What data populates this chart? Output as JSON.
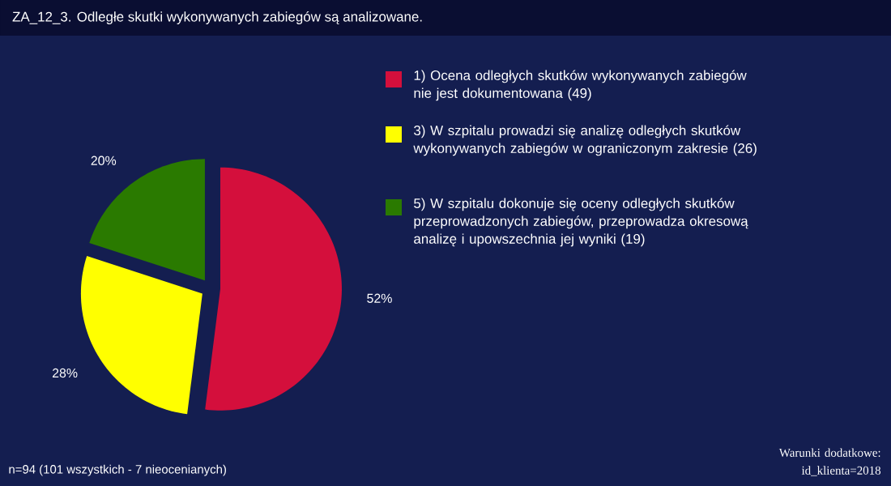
{
  "chart_data": {
    "type": "pie",
    "title": "ZA_12_3. Odległe skutki wykonywanych zabiegów są analizowane.",
    "categories": [
      "1) Ocena odległych skutków wykonywanych zabiegów nie jest dokumentowana (49)",
      "3) W szpitalu prowadzi się analizę odległych skutków wykonywanych zabiegów w ograniczonym zakresie (26)",
      "5) W szpitalu dokonuje się oceny odległych skutków przeprowadzonych zabiegów, przeprowadza okresową analizę i upowszechnia jej wyniki (19)"
    ],
    "values": [
      52,
      28,
      20
    ],
    "colors": [
      "#d40f3c",
      "#ffff00",
      "#2a7a00"
    ],
    "value_labels": [
      "52%",
      "28%",
      "20%"
    ],
    "legend": "right",
    "annotations": [
      "n=94 (101 wszystkich - 7 nieocenianych)",
      "Warunki dodatkowe: id_klienta=2018"
    ]
  }
}
